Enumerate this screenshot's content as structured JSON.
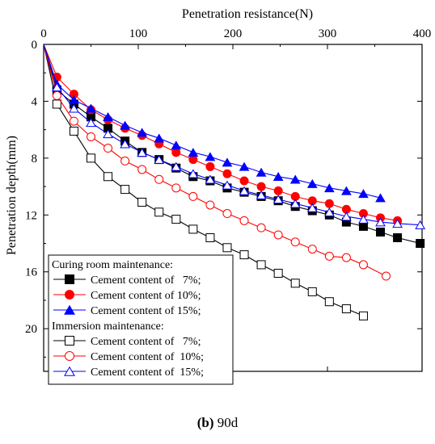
{
  "caption": {
    "label": "(b)",
    "text": "90d"
  },
  "chart_data": {
    "type": "line",
    "xlabel": "Penetration resistance(N)",
    "ylabel": "Penetration depth(mm)",
    "x_axis_position": "top",
    "y_axis_inverted": true,
    "xlim": [
      0,
      400
    ],
    "ylim": [
      0,
      23
    ],
    "x_ticks": [
      0,
      100,
      200,
      300,
      400
    ],
    "y_ticks": [
      0,
      4,
      8,
      12,
      16,
      20
    ],
    "grid": false,
    "legend": {
      "placement": "bottom-left",
      "groups": [
        {
          "title": "Curing room maintenance:",
          "series_indices": [
            0,
            1,
            2
          ]
        },
        {
          "title": "Immersion maintenance:",
          "series_indices": [
            3,
            4,
            5
          ]
        }
      ]
    },
    "series": [
      {
        "name": "Cement content of   7%;",
        "marker": "square",
        "filled": true,
        "color": "#000000",
        "points": [
          [
            0,
            0
          ],
          [
            14,
            3.2
          ],
          [
            32,
            4.2
          ],
          [
            50,
            5.1
          ],
          [
            68,
            5.9
          ],
          [
            86,
            6.8
          ],
          [
            104,
            7.6
          ],
          [
            122,
            8.1
          ],
          [
            140,
            8.7
          ],
          [
            158,
            9.3
          ],
          [
            176,
            9.6
          ],
          [
            194,
            10.1
          ],
          [
            212,
            10.4
          ],
          [
            230,
            10.7
          ],
          [
            248,
            11.0
          ],
          [
            266,
            11.4
          ],
          [
            284,
            11.7
          ],
          [
            302,
            12.0
          ],
          [
            320,
            12.5
          ],
          [
            338,
            12.8
          ],
          [
            356,
            13.2
          ],
          [
            374,
            13.6
          ],
          [
            398,
            14.0
          ]
        ]
      },
      {
        "name": "Cement content of 10%;",
        "marker": "circle",
        "filled": true,
        "color": "#ff0000",
        "points": [
          [
            0,
            0
          ],
          [
            14,
            2.3
          ],
          [
            32,
            3.5
          ],
          [
            50,
            4.6
          ],
          [
            68,
            5.3
          ],
          [
            86,
            5.9
          ],
          [
            104,
            6.4
          ],
          [
            122,
            7.0
          ],
          [
            140,
            7.6
          ],
          [
            158,
            8.1
          ],
          [
            176,
            8.6
          ],
          [
            194,
            9.1
          ],
          [
            212,
            9.6
          ],
          [
            230,
            10.0
          ],
          [
            248,
            10.3
          ],
          [
            266,
            10.7
          ],
          [
            284,
            11.0
          ],
          [
            302,
            11.2
          ],
          [
            320,
            11.6
          ],
          [
            338,
            11.9
          ],
          [
            356,
            12.2
          ],
          [
            374,
            12.4
          ]
        ]
      },
      {
        "name": "Cement content of 15%;",
        "marker": "triangle",
        "filled": true,
        "color": "#0000ff",
        "points": [
          [
            0,
            0
          ],
          [
            14,
            2.8
          ],
          [
            32,
            3.9
          ],
          [
            50,
            4.5
          ],
          [
            68,
            5.1
          ],
          [
            86,
            5.7
          ],
          [
            104,
            6.2
          ],
          [
            122,
            6.6
          ],
          [
            140,
            7.1
          ],
          [
            158,
            7.6
          ],
          [
            176,
            7.9
          ],
          [
            194,
            8.3
          ],
          [
            212,
            8.6
          ],
          [
            230,
            9.0
          ],
          [
            248,
            9.3
          ],
          [
            266,
            9.5
          ],
          [
            284,
            9.8
          ],
          [
            302,
            10.1
          ],
          [
            320,
            10.3
          ],
          [
            338,
            10.5
          ],
          [
            356,
            10.8
          ]
        ]
      },
      {
        "name": "Cement content of   7%;",
        "marker": "square",
        "filled": false,
        "color": "#000000",
        "points": [
          [
            0,
            0
          ],
          [
            14,
            4.2
          ],
          [
            32,
            6.1
          ],
          [
            50,
            8.0
          ],
          [
            68,
            9.3
          ],
          [
            86,
            10.2
          ],
          [
            104,
            11.1
          ],
          [
            122,
            11.8
          ],
          [
            140,
            12.3
          ],
          [
            158,
            13.0
          ],
          [
            176,
            13.6
          ],
          [
            194,
            14.3
          ],
          [
            212,
            14.8
          ],
          [
            230,
            15.5
          ],
          [
            248,
            16.1
          ],
          [
            266,
            16.8
          ],
          [
            284,
            17.4
          ],
          [
            302,
            18.1
          ],
          [
            320,
            18.6
          ],
          [
            338,
            19.1
          ]
        ]
      },
      {
        "name": "Cement content of  10%;",
        "marker": "circle",
        "filled": false,
        "color": "#ff0000",
        "points": [
          [
            0,
            0
          ],
          [
            14,
            3.6
          ],
          [
            32,
            5.4
          ],
          [
            50,
            6.5
          ],
          [
            68,
            7.3
          ],
          [
            86,
            8.2
          ],
          [
            104,
            8.8
          ],
          [
            122,
            9.5
          ],
          [
            140,
            10.1
          ],
          [
            158,
            10.7
          ],
          [
            176,
            11.3
          ],
          [
            194,
            11.9
          ],
          [
            212,
            12.4
          ],
          [
            230,
            12.9
          ],
          [
            248,
            13.4
          ],
          [
            266,
            13.9
          ],
          [
            284,
            14.4
          ],
          [
            302,
            14.9
          ],
          [
            320,
            15.0
          ],
          [
            338,
            15.5
          ],
          [
            362,
            16.3
          ]
        ]
      },
      {
        "name": "Cement content of  15%;",
        "marker": "triangle",
        "filled": false,
        "color": "#0000ff",
        "points": [
          [
            0,
            0
          ],
          [
            14,
            3.0
          ],
          [
            32,
            4.5
          ],
          [
            50,
            5.5
          ],
          [
            68,
            6.3
          ],
          [
            86,
            7.0
          ],
          [
            104,
            7.6
          ],
          [
            122,
            8.1
          ],
          [
            140,
            8.6
          ],
          [
            158,
            9.1
          ],
          [
            176,
            9.5
          ],
          [
            194,
            9.9
          ],
          [
            212,
            10.3
          ],
          [
            230,
            10.6
          ],
          [
            248,
            10.9
          ],
          [
            266,
            11.2
          ],
          [
            284,
            11.5
          ],
          [
            302,
            11.8
          ],
          [
            320,
            12.1
          ],
          [
            338,
            12.3
          ],
          [
            356,
            12.5
          ],
          [
            374,
            12.6
          ],
          [
            398,
            12.7
          ]
        ]
      }
    ]
  }
}
